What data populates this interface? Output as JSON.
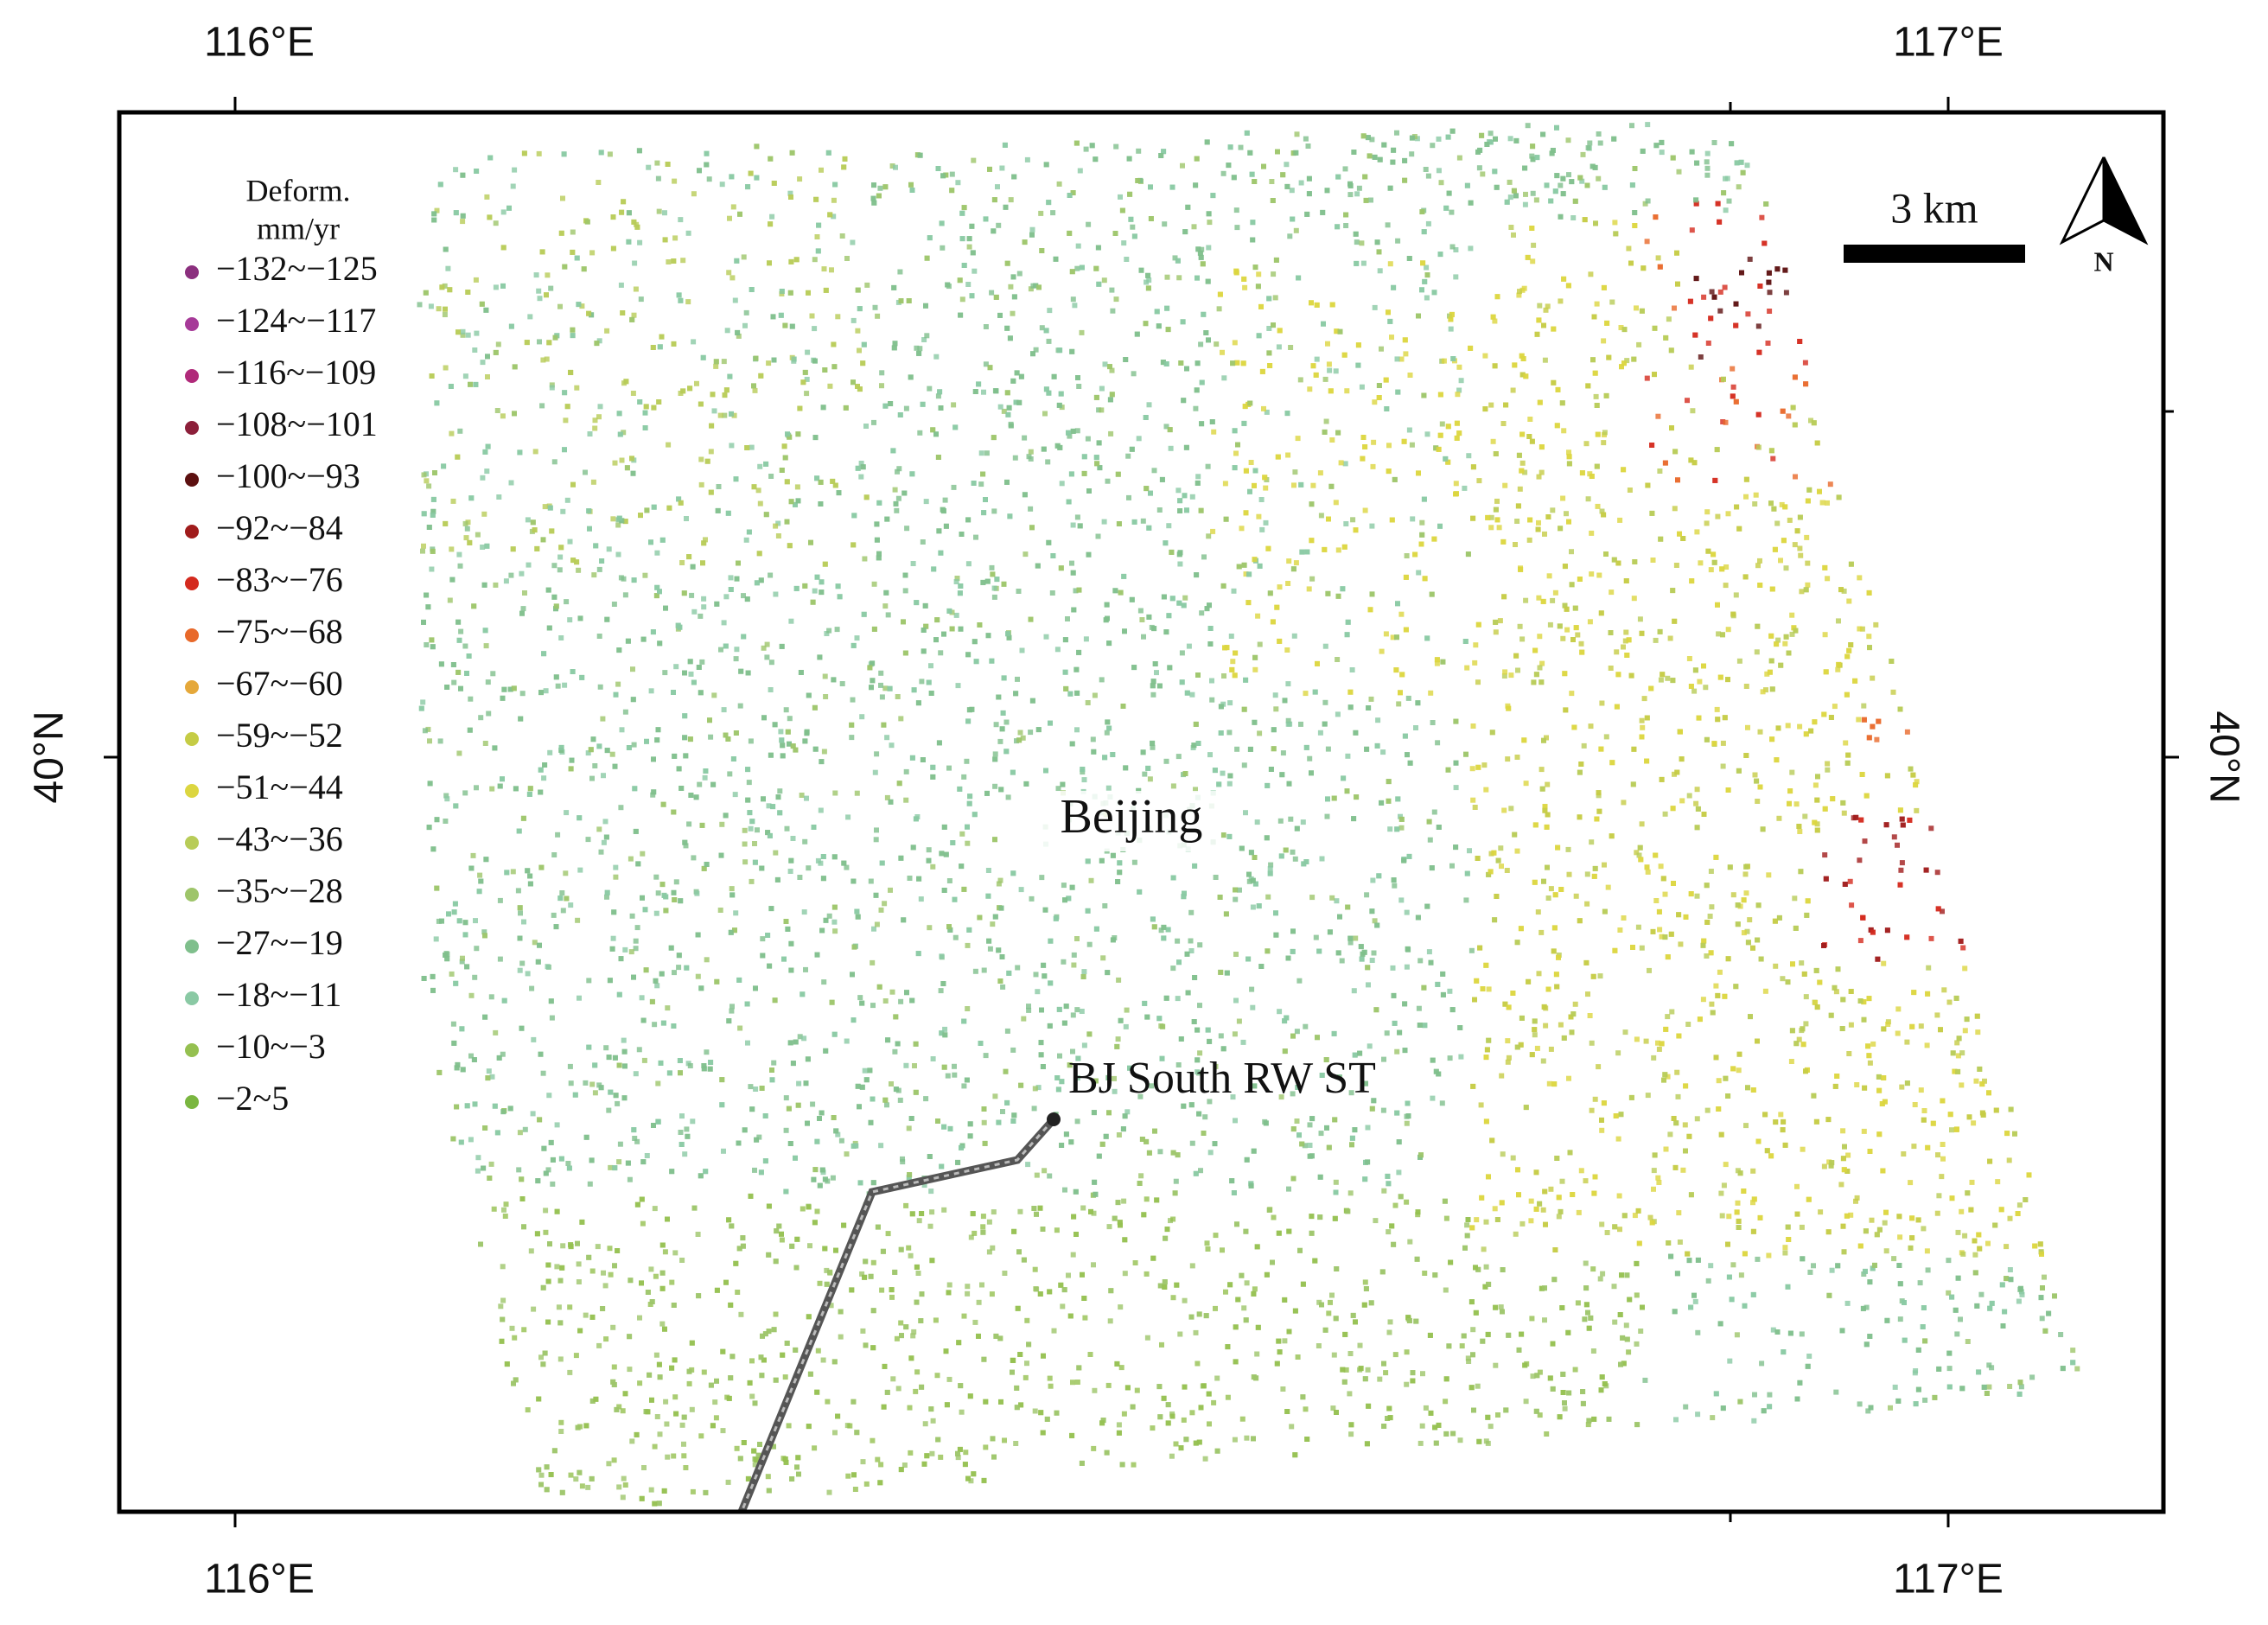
{
  "map": {
    "top_labels": [
      "116°E",
      "117°E"
    ],
    "bottom_labels": [
      "116°E",
      "117°E"
    ],
    "left_label": "40°N",
    "right_label": "40°N",
    "legend": {
      "title": "Deform.",
      "unit": "mm/yr",
      "items": [
        {
          "label": "−132~−125",
          "color": "#8b2f7e"
        },
        {
          "label": "−124~−117",
          "color": "#a63a98"
        },
        {
          "label": "−116~−109",
          "color": "#b02a7a"
        },
        {
          "label": "−108~−101",
          "color": "#8c1f3a"
        },
        {
          "label": "−100~−93",
          "color": "#5c1010"
        },
        {
          "label": "−92~−84",
          "color": "#a01c1c"
        },
        {
          "label": "−83~−76",
          "color": "#d42a1e"
        },
        {
          "label": "−75~−68",
          "color": "#e8692a"
        },
        {
          "label": "−67~−60",
          "color": "#e5a83a"
        },
        {
          "label": "−59~−52",
          "color": "#c5cc45"
        },
        {
          "label": "−51~−44",
          "color": "#dcd640"
        },
        {
          "label": "−43~−36",
          "color": "#b8cc58"
        },
        {
          "label": "−35~−28",
          "color": "#9ec56a"
        },
        {
          "label": "−27~−19",
          "color": "#7fbf8c"
        },
        {
          "label": "−18~−11",
          "color": "#8ac9a4"
        },
        {
          "label": "−10~−3",
          "color": "#95c050"
        },
        {
          "label": "−2~5",
          "color": "#7ab640"
        }
      ]
    },
    "scale_bar": "3 km",
    "north": "N",
    "places": [
      {
        "label": "Beijing"
      },
      {
        "label": "BJ South RW ST"
      }
    ]
  }
}
